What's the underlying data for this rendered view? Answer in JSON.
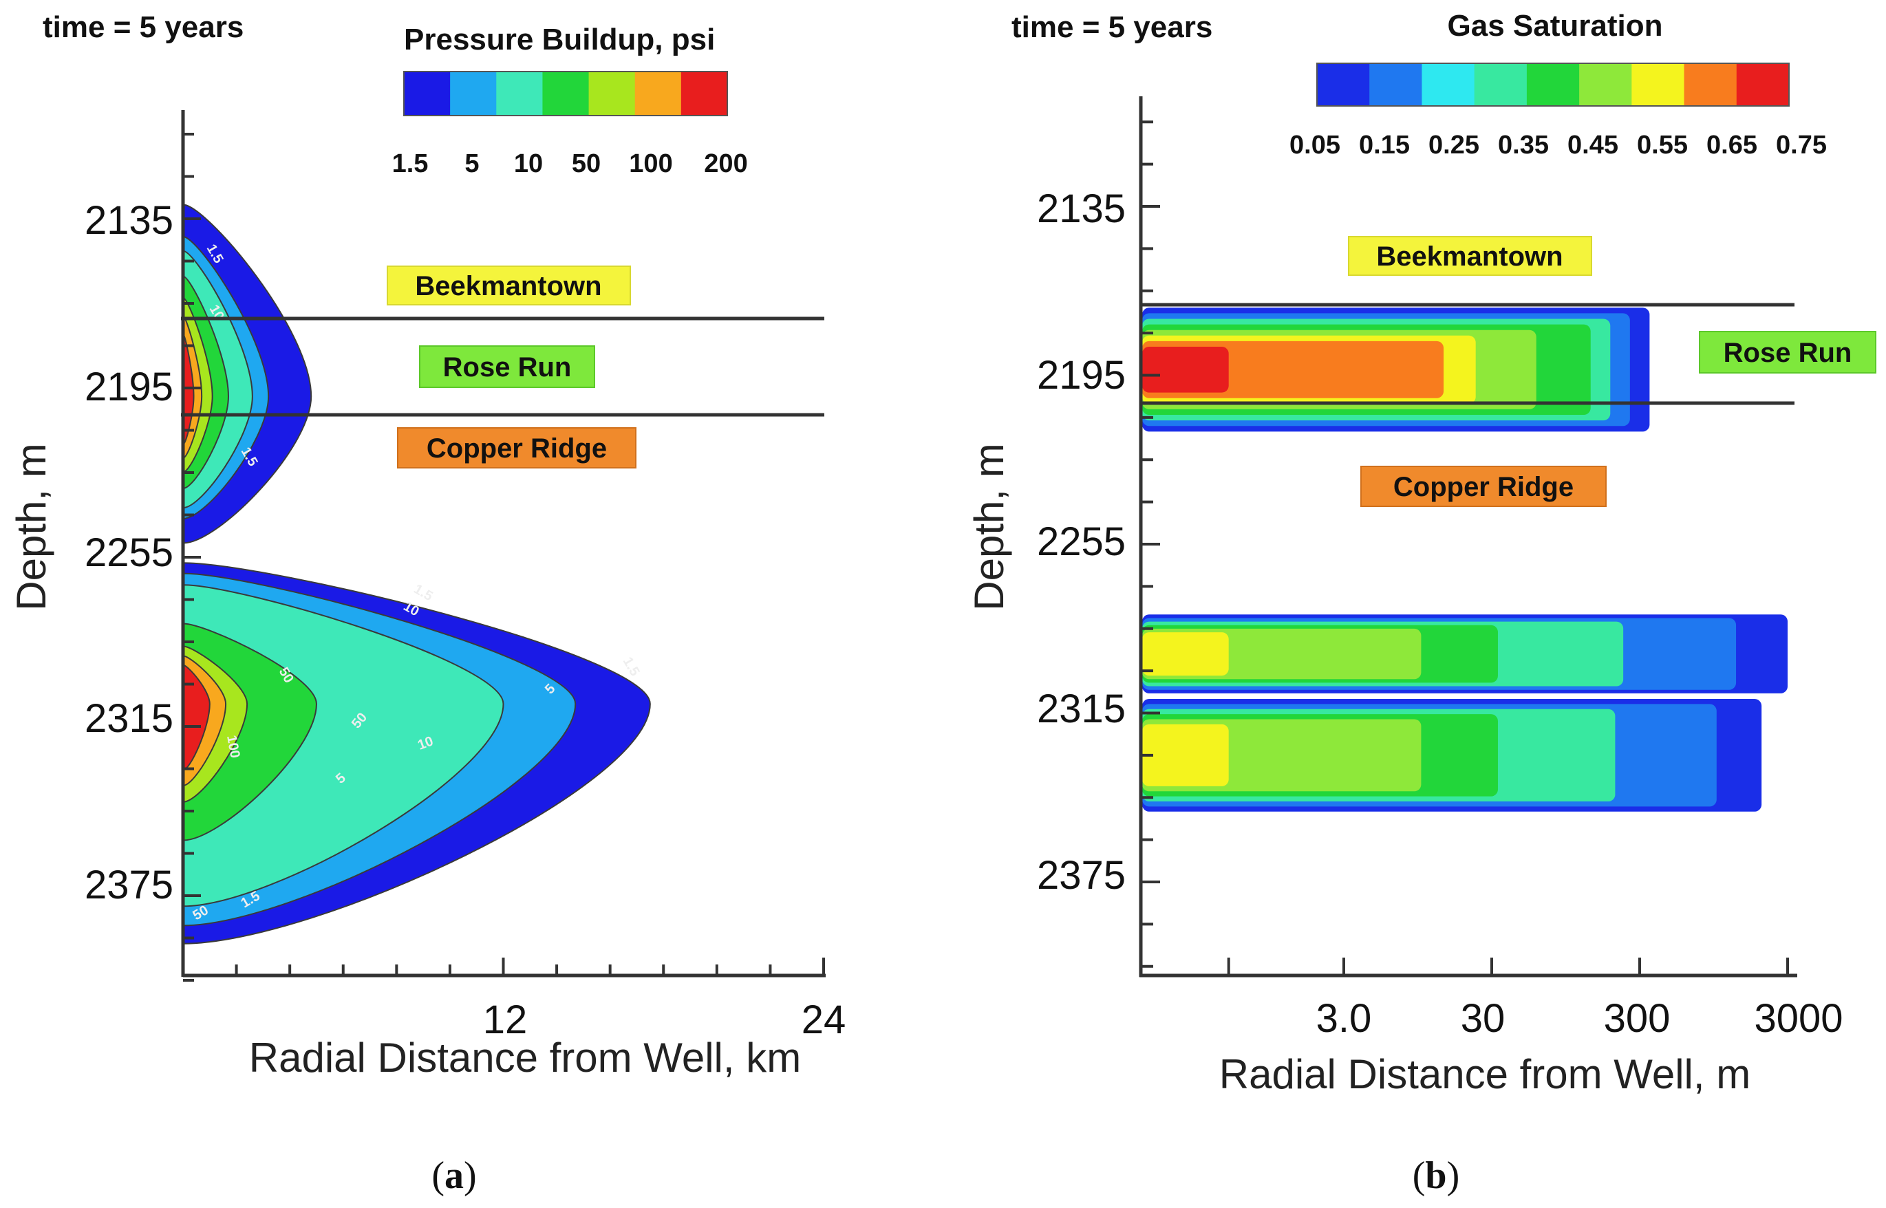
{
  "chart_data": [
    {
      "type": "heatmap",
      "panel": "(a)",
      "caption_letter": "a",
      "time_label": "time = 5 years",
      "title": "Pressure Buildup, psi",
      "xlabel": "Radial Distance from Well, km",
      "ylabel": "Depth, m",
      "xlim": [
        0,
        24
      ],
      "xticks": [
        "12",
        "24"
      ],
      "ylim": [
        2090,
        2405
      ],
      "yticks": [
        "2135",
        "2195",
        "2255",
        "2315",
        "2375"
      ],
      "colorbar": {
        "colors": [
          "#1a1ae6",
          "#1fa8f0",
          "#3ee8b8",
          "#22d63a",
          "#a8e61e",
          "#f8a81e",
          "#e81e1e"
        ],
        "labels": [
          "1.5",
          "5",
          "10",
          "50",
          "100",
          "200"
        ]
      },
      "formation_boundaries_depth_m": [
        2170,
        2205
      ],
      "formations": [
        {
          "name": "Beekmantown",
          "color": "#f4f43c"
        },
        {
          "name": "Rose Run",
          "color": "#7ee83c"
        },
        {
          "name": "Copper Ridge",
          "color": "#f08a2c"
        }
      ],
      "contour_labels": [
        "1.5",
        "5",
        "10",
        "50",
        "100"
      ],
      "lobes": [
        {
          "depth_range_m": [
            2130,
            2250
          ],
          "peak_depth_m": 2198,
          "extent_km_by_level": {
            "1.5": 4.8,
            "5": 3.2,
            "10": 2.6,
            "50": 1.7,
            "100": 1.1,
            "200": 0.7,
            "max": 0.4
          }
        },
        {
          "depth_range_m": [
            2257,
            2392
          ],
          "peak_depth_m": 2307,
          "extent_km_by_level": {
            "1.5": 17.5,
            "5": 14.7,
            "10": 12.0,
            "50": 5.0,
            "100": 2.4,
            "200": 1.6,
            "max": 1.0
          }
        }
      ]
    },
    {
      "type": "heatmap",
      "panel": "(b)",
      "caption_letter": "b",
      "time_label": "time = 5 years",
      "title": "Gas Saturation",
      "xlabel": "Radial Distance from Well, m",
      "ylabel": "Depth, m",
      "xscale": "log",
      "xticks": [
        "3.0",
        "30",
        "300",
        "3000"
      ],
      "ylim": [
        2090,
        2405
      ],
      "yticks": [
        "2135",
        "2195",
        "2255",
        "2315",
        "2375"
      ],
      "colorbar": {
        "colors": [
          "#1a2ee8",
          "#1f78f0",
          "#2ee8f0",
          "#38e8a0",
          "#22d63a",
          "#8ee83a",
          "#f4f41e",
          "#f87c1e",
          "#e81e1e"
        ],
        "labels": [
          "0.05",
          "0.15",
          "0.25",
          "0.35",
          "0.45",
          "0.55",
          "0.65",
          "0.75"
        ]
      },
      "formation_boundaries_depth_m": [
        2170,
        2206
      ],
      "formations": [
        {
          "name": "Beekmantown",
          "color": "#f4f43c"
        },
        {
          "name": "Rose Run",
          "color": "#7ee83c"
        },
        {
          "name": "Copper Ridge",
          "color": "#f08a2c"
        }
      ],
      "plumes": [
        {
          "depth_range_m": [
            2171,
            2215
          ],
          "max_radius_m": 350,
          "saturation_profile": [
            [
              0.5,
              0.75
            ],
            [
              10,
              0.72
            ],
            [
              30,
              0.5
            ],
            [
              120,
              0.4
            ],
            [
              350,
              0.05
            ]
          ]
        },
        {
          "depth_range_m": [
            2280,
            2308
          ],
          "max_radius_m": 3000,
          "saturation_profile": [
            [
              0.5,
              0.55
            ],
            [
              10,
              0.45
            ],
            [
              60,
              0.3
            ],
            [
              900,
              0.2
            ],
            [
              3000,
              0.05
            ]
          ]
        },
        {
          "depth_range_m": [
            2310,
            2350
          ],
          "max_radius_m": 2000,
          "saturation_profile": [
            [
              0.5,
              0.55
            ],
            [
              10,
              0.45
            ],
            [
              60,
              0.3
            ],
            [
              700,
              0.2
            ],
            [
              2000,
              0.05
            ]
          ]
        }
      ]
    }
  ]
}
